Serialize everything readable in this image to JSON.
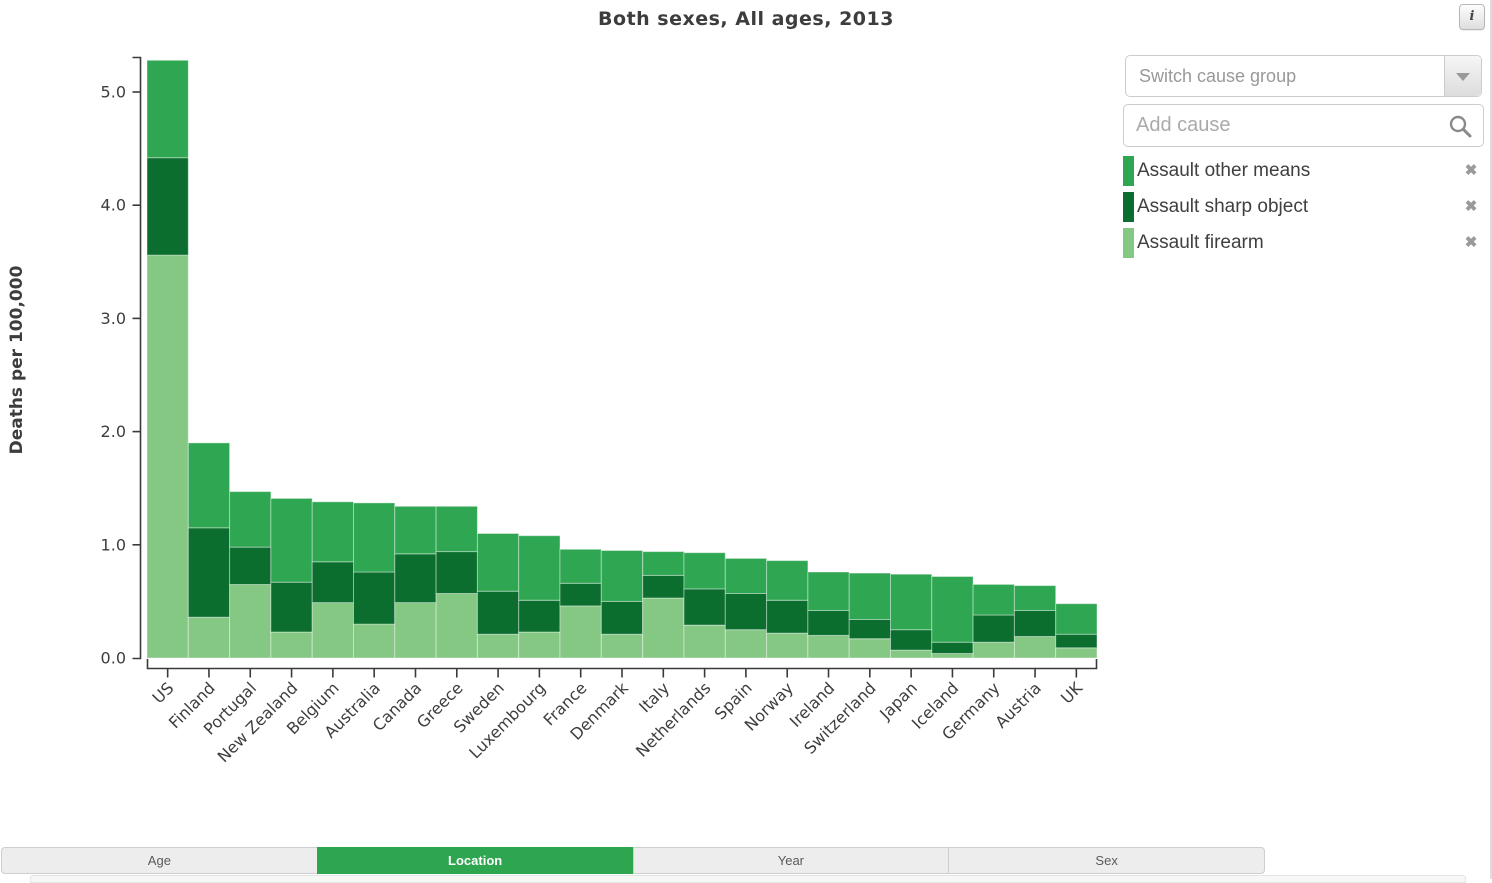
{
  "header": {
    "title": "Both sexes, All ages, 2013",
    "info_icon_glyph": "i"
  },
  "controls": {
    "switch_cause_group": {
      "label": "Switch cause group"
    },
    "add_cause": {
      "placeholder": "Add cause"
    },
    "legend": [
      {
        "label": "Assault other means",
        "color": "#2fa652",
        "remove_icon": "✖"
      },
      {
        "label": "Assault sharp object",
        "color": "#0b6e2e",
        "remove_icon": "✖"
      },
      {
        "label": "Assault firearm",
        "color": "#84c884",
        "remove_icon": "✖"
      }
    ]
  },
  "tabs": [
    {
      "label": "Age",
      "active": false
    },
    {
      "label": "Location",
      "active": true
    },
    {
      "label": "Year",
      "active": false
    },
    {
      "label": "Sex",
      "active": false
    }
  ],
  "tab_active_color": "#2da64f",
  "chart_data": {
    "type": "bar",
    "stacked": true,
    "title": "Both sexes, All ages, 2013",
    "xlabel": "",
    "ylabel": "Deaths per 100,000",
    "ylim": [
      0,
      5.31
    ],
    "yticks": [
      0,
      1,
      2,
      3,
      4,
      5
    ],
    "ytick_labels": [
      "0.0",
      "1.0",
      "2.0",
      "3.0",
      "4.0",
      "5.0"
    ],
    "grid": false,
    "legend_position": "right",
    "categories": [
      "US",
      "Finland",
      "Portugal",
      "New Zealand",
      "Belgium",
      "Australia",
      "Canada",
      "Greece",
      "Sweden",
      "Luxembourg",
      "France",
      "Denmark",
      "Italy",
      "Netherlands",
      "Spain",
      "Norway",
      "Ireland",
      "Switzerland",
      "Japan",
      "Iceland",
      "Germany",
      "Austria",
      "UK"
    ],
    "series": [
      {
        "name": "Assault firearm",
        "color": "#84c884",
        "values": [
          3.56,
          0.36,
          0.65,
          0.23,
          0.49,
          0.3,
          0.49,
          0.57,
          0.21,
          0.23,
          0.46,
          0.21,
          0.53,
          0.29,
          0.25,
          0.22,
          0.2,
          0.17,
          0.07,
          0.04,
          0.14,
          0.19,
          0.09
        ]
      },
      {
        "name": "Assault sharp object",
        "color": "#0b6e2e",
        "values": [
          0.86,
          0.79,
          0.33,
          0.44,
          0.36,
          0.46,
          0.43,
          0.37,
          0.38,
          0.28,
          0.2,
          0.29,
          0.2,
          0.32,
          0.32,
          0.29,
          0.22,
          0.17,
          0.18,
          0.1,
          0.24,
          0.23,
          0.12
        ]
      },
      {
        "name": "Assault other means",
        "color": "#2fa652",
        "values": [
          0.86,
          0.75,
          0.49,
          0.74,
          0.53,
          0.61,
          0.42,
          0.4,
          0.51,
          0.57,
          0.3,
          0.45,
          0.21,
          0.32,
          0.31,
          0.35,
          0.34,
          0.41,
          0.49,
          0.58,
          0.27,
          0.22,
          0.27
        ]
      }
    ],
    "totals": [
      5.28,
      1.9,
      1.47,
      1.41,
      1.38,
      1.37,
      1.34,
      1.34,
      1.1,
      1.08,
      0.96,
      0.95,
      0.94,
      0.93,
      0.88,
      0.86,
      0.76,
      0.75,
      0.74,
      0.72,
      0.65,
      0.64,
      0.48
    ]
  }
}
